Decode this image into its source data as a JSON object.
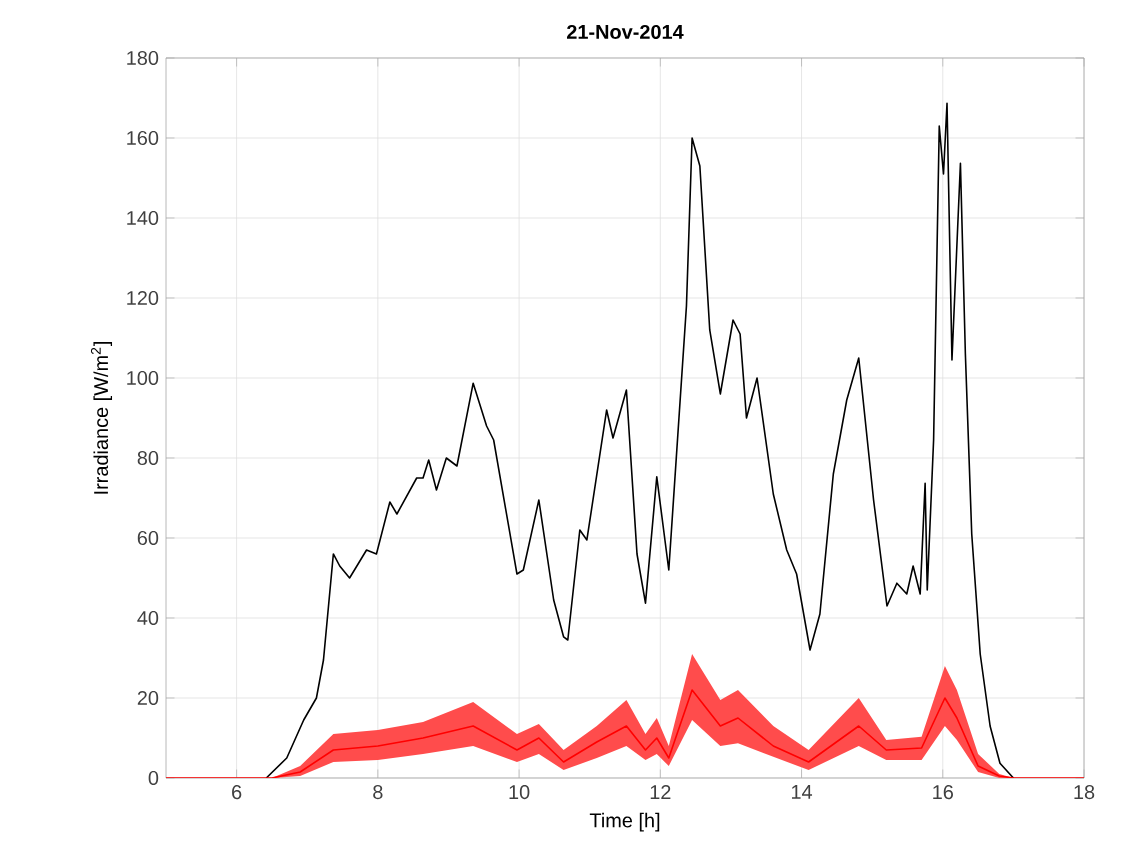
{
  "chart_data": {
    "type": "line",
    "title": "21-Nov-2014",
    "xlabel": "Time [h]",
    "ylabel": "Irradiance [W/m$^{2}$]",
    "xlim": [
      5,
      18
    ],
    "xticks": [
      6,
      8,
      10,
      12,
      14,
      16,
      18
    ],
    "ylim": [
      0,
      180
    ],
    "yticks": [
      0,
      20,
      40,
      60,
      80,
      100,
      120,
      140,
      160,
      180
    ],
    "grid": true,
    "marker": "none",
    "line_style": "solid",
    "series": [
      {
        "color": "#000000",
        "x": [
          6.42,
          6.71,
          6.95,
          7.13,
          7.23,
          7.37,
          7.46,
          7.6,
          7.84,
          7.98,
          8.17,
          8.27,
          8.55,
          8.64,
          8.72,
          8.83,
          8.97,
          9.12,
          9.35,
          9.54,
          9.64,
          9.97,
          10.06,
          10.28,
          10.49,
          10.63,
          10.69,
          10.86,
          10.96,
          11.24,
          11.33,
          11.52,
          11.67,
          11.79,
          11.95,
          12.12,
          12.37,
          12.45,
          12.56,
          12.7,
          12.85,
          13.03,
          13.13,
          13.22,
          13.37,
          13.6,
          13.79,
          13.93,
          14.12,
          14.26,
          14.45,
          14.64,
          14.81,
          15.02,
          15.21,
          15.35,
          15.49,
          15.58,
          15.68,
          15.75,
          15.78,
          15.87,
          15.95,
          16.01,
          16.06,
          16.13,
          16.25,
          16.32,
          16.41,
          16.53,
          16.67,
          16.81,
          17.0
        ],
        "values": [
          0,
          5,
          14.5,
          20,
          29.5,
          56,
          53,
          50,
          57,
          56,
          69,
          66,
          75,
          75,
          79.5,
          72,
          80,
          78,
          98.7,
          88,
          84.5,
          51,
          52,
          69.5,
          44.5,
          35.3,
          34.5,
          62,
          59.5,
          92,
          85,
          97,
          56,
          43.7,
          75.3,
          52,
          118,
          160,
          153,
          112,
          96,
          114.5,
          111,
          90,
          100,
          71,
          57,
          51,
          32,
          41,
          76,
          94.5,
          105,
          69.5,
          43,
          48.7,
          46,
          53,
          46,
          73.7,
          47,
          84.5,
          163,
          151,
          168.7,
          104.5,
          153.7,
          106,
          61,
          31,
          13,
          3.7,
          0
        ]
      },
      {
        "color": "#ff0000",
        "x": [
          5,
          6.5,
          6.9,
          7.37,
          8.0,
          8.64,
          9.35,
          9.97,
          10.28,
          10.63,
          11.1,
          11.52,
          11.79,
          11.95,
          12.12,
          12.45,
          12.85,
          13.1,
          13.6,
          14.1,
          14.81,
          15.2,
          15.7,
          16.03,
          16.2,
          16.5,
          16.8,
          17.0,
          18
        ],
        "values": [
          0,
          0,
          1.5,
          7,
          8,
          10,
          13,
          7,
          10,
          4,
          9,
          13,
          7,
          10,
          5,
          22,
          13,
          15,
          8,
          4,
          13,
          7,
          7.5,
          20,
          15,
          3,
          0.5,
          0,
          0
        ],
        "lower": [
          0,
          0,
          0.5,
          4,
          4.5,
          6,
          8,
          4,
          6,
          2,
          5,
          8,
          4.5,
          6,
          3,
          14.5,
          8,
          8.7,
          5.3,
          2,
          8,
          4.5,
          4.5,
          13,
          9.5,
          1.5,
          0,
          0,
          0
        ],
        "upper": [
          0,
          0,
          3,
          11,
          12,
          14,
          19,
          11,
          13.5,
          7,
          13,
          19.5,
          11,
          15,
          8,
          31,
          19.5,
          22,
          13,
          7,
          20,
          9.5,
          10.3,
          28,
          22,
          6,
          1,
          0,
          0
        ]
      }
    ]
  }
}
